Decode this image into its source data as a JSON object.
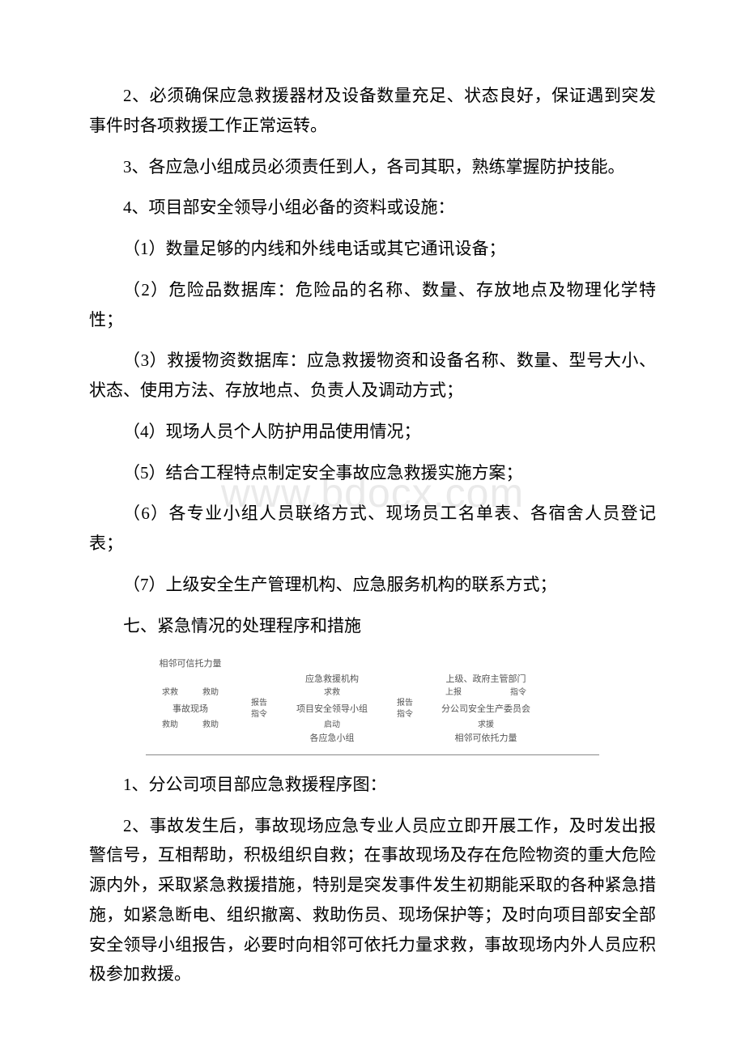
{
  "watermark": "www.bdocx.com",
  "paragraphs": {
    "p2": "2、必须确保应急救援器材及设备数量充足、状态良好，保证遇到突发事件时各项救援工作正常运转。",
    "p3": "3、各应急小组成员必须责任到人，各司其职，熟练掌握防护技能。",
    "p4": "4、项目部安全领导小组必备的资料或设施：",
    "p4_1": "（1）数量足够的内线和外线电话或其它通讯设备；",
    "p4_2": "（2）危险品数据库：危险品的名称、数量、存放地点及物理化学特性；",
    "p4_3": "（3）救援物资数据库：应急救援物资和设备名称、数量、型号大小、状态、使用方法、存放地点、负责人及调动方式；",
    "p4_4": "（4）现场人员个人防护用品使用情况；",
    "p4_5": "（5）结合工程特点制定安全事故应急救援实施方案；",
    "p4_6": "（6）各专业小组人员联络方式、现场员工名单表、各宿舍人员登记表；",
    "p4_7": "（7）上级安全生产管理机构、应急服务机构的联系方式；",
    "section7": "七、紧急情况的处理程序和措施",
    "p7_1": "1、分公司项目部应急救援程序图：",
    "p7_2": "2、事故发生后，事故现场应急专业人员应立即开展工作，及时发出报警信号，互相帮助，积极组织自救；在事故现场及存在危险物资的重大危险源内外，采取紧急救援措施，特别是突发事件发生初期能采取的各种紧急措施，如紧急断电、组织撤离、救助伤员、现场保护等；及时向项目部安全部安全领导小组报告，必要时向相邻可依托力量求救，事故现场内外人员应积极参加救援。"
  },
  "diagram": {
    "neighbor_trust": "相邻可信托力量",
    "rescue_org": "应急救援机构",
    "superior_gov": "上级、政府主管部门",
    "seek": "求救",
    "aid_help": "救助",
    "report": "报告",
    "order": "指令",
    "up_report": "上报",
    "direct": "指令",
    "scene": "事故现场",
    "proj_group": "项目安全领导小组",
    "branch_committee": "分公司安全生产委员会",
    "rescue_a": "救助",
    "rescue_b": "救助",
    "startup": "启动",
    "seek_援": "求援",
    "each_group": "各应急小组",
    "neighbor_rely": "相邻可依托力量"
  },
  "colors": {
    "text": "#000000",
    "watermark": "#eaeaea",
    "diagram_text": "#555555",
    "diagram_border": "#888888",
    "background": "#ffffff"
  }
}
